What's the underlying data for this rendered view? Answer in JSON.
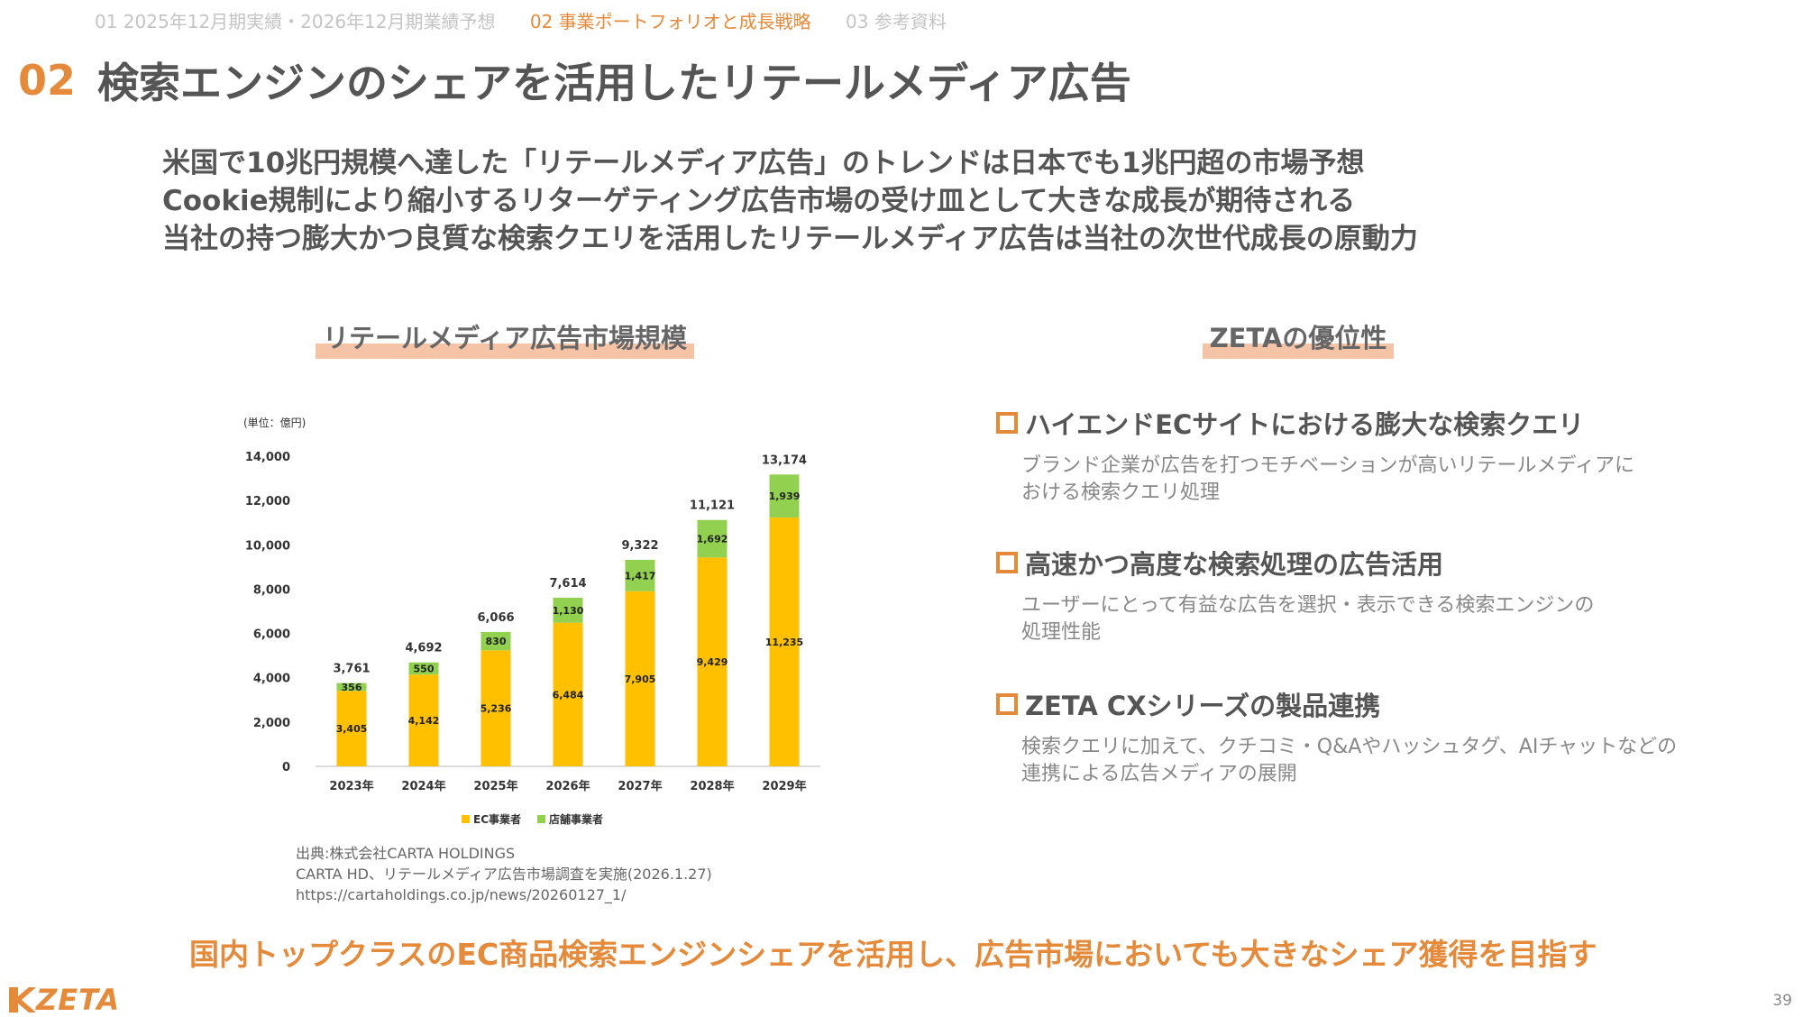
{
  "nav": {
    "item1": "01 2025年12月期実績・2026年12月期業績予想",
    "item2": "02 事業ポートフォリオと成長戦略",
    "item3": "03 参考資料"
  },
  "title": {
    "number": "02",
    "text": "検索エンジンのシェアを活用したリテールメディア広告"
  },
  "lead": {
    "line1": "米国で10兆円規模へ達した「リテールメディア広告」のトレンドは日本でも1兆円超の市場予想",
    "line2": "Cookie規制により縮小するリターゲティング広告市場の受け皿として大きな成長が期待される",
    "line3": "当社の持つ膨大かつ良質な検索クエリを活用したリテールメディア広告は当社の次世代成長の原動力"
  },
  "left_section": {
    "heading": "リテールメディア広告市場規模"
  },
  "right_section": {
    "heading": "ZETAの優位性"
  },
  "chart_data": {
    "type": "bar",
    "stacked": true,
    "unit_label": "(単位：億円)",
    "categories": [
      "2023年",
      "2024年",
      "2025年",
      "2026年",
      "2027年",
      "2028年",
      "2029年"
    ],
    "series": [
      {
        "name": "EC事業者",
        "color": "#ffc000",
        "values": [
          3405,
          4142,
          5236,
          6484,
          7905,
          9429,
          11235
        ]
      },
      {
        "name": "店舗事業者",
        "color": "#92d050",
        "values": [
          356,
          550,
          830,
          1130,
          1417,
          1692,
          1939
        ]
      }
    ],
    "totals": [
      3761,
      4692,
      6066,
      7614,
      9322,
      11121,
      13174
    ],
    "ylim": [
      0,
      14000
    ],
    "yticks": [
      0,
      2000,
      4000,
      6000,
      8000,
      10000,
      12000,
      14000
    ],
    "legend": "bottom"
  },
  "source": {
    "line1": "出典:株式会社CARTA HOLDINGS",
    "line2": "CARTA HD、リテールメディア広告市場調査を実施(2026.1.27)",
    "line3": "https://cartaholdings.co.jp/news/20260127_1/"
  },
  "advantages": [
    {
      "title": "ハイエンドECサイトにおける膨大な検索クエリ",
      "line1": "ブランド企業が広告を打つモチベーションが高いリテールメディアに",
      "line2": "おける検索クエリ処理"
    },
    {
      "title": "高速かつ高度な検索処理の広告活用",
      "line1": "ユーザーにとって有益な広告を選択・表示できる検索エンジンの",
      "line2": "処理性能"
    },
    {
      "title": "ZETA CXシリーズの製品連携",
      "line1": "検索クエリに加えて、クチコミ・Q&Aやハッシュタグ、AIチャットなどの",
      "line2": "連携による広告メディアの展開"
    }
  ],
  "bottom_message": "国内トップクラスのEC商品検索エンジンシェアを活用し、広告市場においても大きなシェア獲得を目指す",
  "logo": {
    "text": "ZETA"
  },
  "page_number": "39",
  "colors": {
    "accent": "#e48a3a",
    "highlight": "#f5c3a6",
    "text": "#555555"
  }
}
